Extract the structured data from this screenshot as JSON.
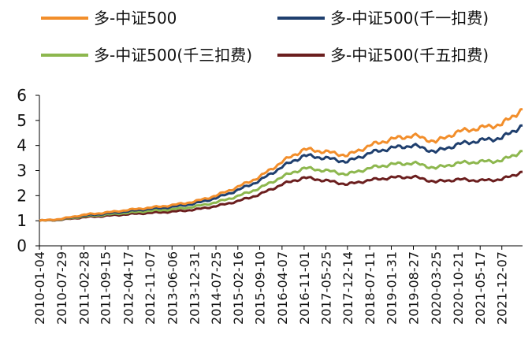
{
  "chart_data": {
    "type": "line",
    "title": "",
    "xlabel": "",
    "ylabel": "",
    "ylim": [
      0,
      6
    ],
    "yticks": [
      "0",
      "1",
      "2",
      "3",
      "4",
      "5",
      "6"
    ],
    "grid": false,
    "legend_position": "top",
    "x_tick_labels": [
      "2010-01-04",
      "2010-07-29",
      "2011-02-28",
      "2011-09-15",
      "2012-04-17",
      "2012-11-07",
      "2013-06-06",
      "2013-12-31",
      "2014-07-25",
      "2015-02-16",
      "2015-09-10",
      "2016-04-07",
      "2016-11-01",
      "2017-05-25",
      "2017-12-14",
      "2018-07-11",
      "2019-01-31",
      "2019-08-27",
      "2020-03-25",
      "2020-10-21",
      "2021-05-17",
      "2021-12-07"
    ],
    "x": [
      "2010-01-04",
      "2010-07-29",
      "2011-02-28",
      "2011-09-15",
      "2012-04-17",
      "2012-11-07",
      "2013-06-06",
      "2013-12-31",
      "2014-07-25",
      "2015-02-16",
      "2015-09-10",
      "2016-04-07",
      "2016-11-01",
      "2017-05-25",
      "2017-12-14",
      "2018-07-11",
      "2019-01-31",
      "2019-08-27",
      "2020-03-25",
      "2020-10-21",
      "2021-05-17",
      "2021-12-07",
      "2022-06-20"
    ],
    "series": [
      {
        "name": "多-中证500",
        "color": "#F28E2B",
        "values": [
          1.0,
          1.07,
          1.24,
          1.32,
          1.43,
          1.52,
          1.62,
          1.76,
          2.0,
          2.35,
          2.75,
          3.35,
          3.85,
          3.75,
          3.6,
          4.0,
          4.25,
          4.4,
          4.15,
          4.55,
          4.7,
          4.85,
          5.45
        ]
      },
      {
        "name": "多-中证500(千一扣费)",
        "color": "#1F3F6E",
        "values": [
          1.0,
          1.06,
          1.21,
          1.28,
          1.38,
          1.47,
          1.55,
          1.68,
          1.9,
          2.22,
          2.6,
          3.15,
          3.6,
          3.5,
          3.35,
          3.7,
          3.9,
          4.0,
          3.75,
          4.05,
          4.2,
          4.3,
          4.8
        ]
      },
      {
        "name": "多-中证500(千三扣费)",
        "color": "#8DB74E",
        "values": [
          1.0,
          1.05,
          1.18,
          1.24,
          1.32,
          1.39,
          1.45,
          1.56,
          1.73,
          1.98,
          2.3,
          2.75,
          3.1,
          3.0,
          2.85,
          3.1,
          3.25,
          3.3,
          3.1,
          3.3,
          3.35,
          3.4,
          3.78
        ]
      },
      {
        "name": "多-中证500(千五扣费)",
        "color": "#6B1E1E",
        "values": [
          1.0,
          1.04,
          1.14,
          1.19,
          1.26,
          1.31,
          1.36,
          1.44,
          1.58,
          1.78,
          2.05,
          2.45,
          2.72,
          2.6,
          2.45,
          2.62,
          2.72,
          2.75,
          2.55,
          2.65,
          2.6,
          2.65,
          2.95
        ]
      }
    ]
  }
}
